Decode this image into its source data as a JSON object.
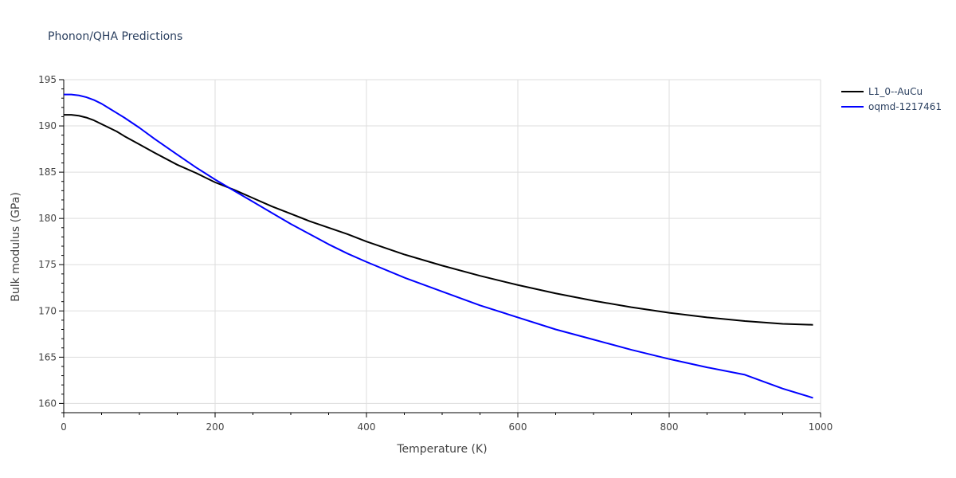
{
  "chart_data": {
    "type": "line",
    "title": "Phonon/QHA Predictions",
    "xlabel": "Temperature (K)",
    "ylabel": "Bulk modulus (GPa)",
    "xlim": [
      0,
      1000
    ],
    "ylim": [
      159,
      195
    ],
    "xticks": [
      0,
      200,
      400,
      600,
      800,
      1000
    ],
    "yticks": [
      160,
      165,
      170,
      175,
      180,
      185,
      190,
      195
    ],
    "grid": true,
    "legend_position": "top-right",
    "series": [
      {
        "name": "L1_0--AuCu",
        "color": "#000000",
        "x": [
          0,
          10,
          20,
          30,
          40,
          50,
          60,
          70,
          80,
          100,
          120,
          150,
          175,
          200,
          225,
          250,
          275,
          300,
          325,
          350,
          375,
          400,
          450,
          500,
          550,
          600,
          650,
          700,
          750,
          800,
          850,
          900,
          950,
          990
        ],
        "y": [
          191.2,
          191.2,
          191.1,
          190.9,
          190.6,
          190.2,
          189.8,
          189.4,
          188.9,
          188.0,
          187.1,
          185.8,
          184.9,
          183.9,
          183.1,
          182.2,
          181.3,
          180.5,
          179.7,
          179.0,
          178.3,
          177.5,
          176.1,
          174.9,
          173.8,
          172.8,
          171.9,
          171.1,
          170.4,
          169.8,
          169.3,
          168.9,
          168.6,
          168.5
        ]
      },
      {
        "name": "oqmd-1217461",
        "color": "#0000ff",
        "x": [
          0,
          10,
          20,
          30,
          40,
          50,
          60,
          70,
          80,
          100,
          120,
          150,
          175,
          200,
          225,
          250,
          275,
          300,
          325,
          350,
          375,
          400,
          450,
          500,
          550,
          600,
          650,
          700,
          750,
          800,
          850,
          900,
          950,
          990
        ],
        "y": [
          193.4,
          193.4,
          193.3,
          193.1,
          192.8,
          192.4,
          191.9,
          191.4,
          190.9,
          189.8,
          188.6,
          186.9,
          185.5,
          184.2,
          183.0,
          181.8,
          180.6,
          179.4,
          178.3,
          177.2,
          176.2,
          175.3,
          173.6,
          172.1,
          170.6,
          169.3,
          168.0,
          166.9,
          165.8,
          164.8,
          163.9,
          163.1,
          161.6,
          160.6
        ]
      }
    ]
  }
}
